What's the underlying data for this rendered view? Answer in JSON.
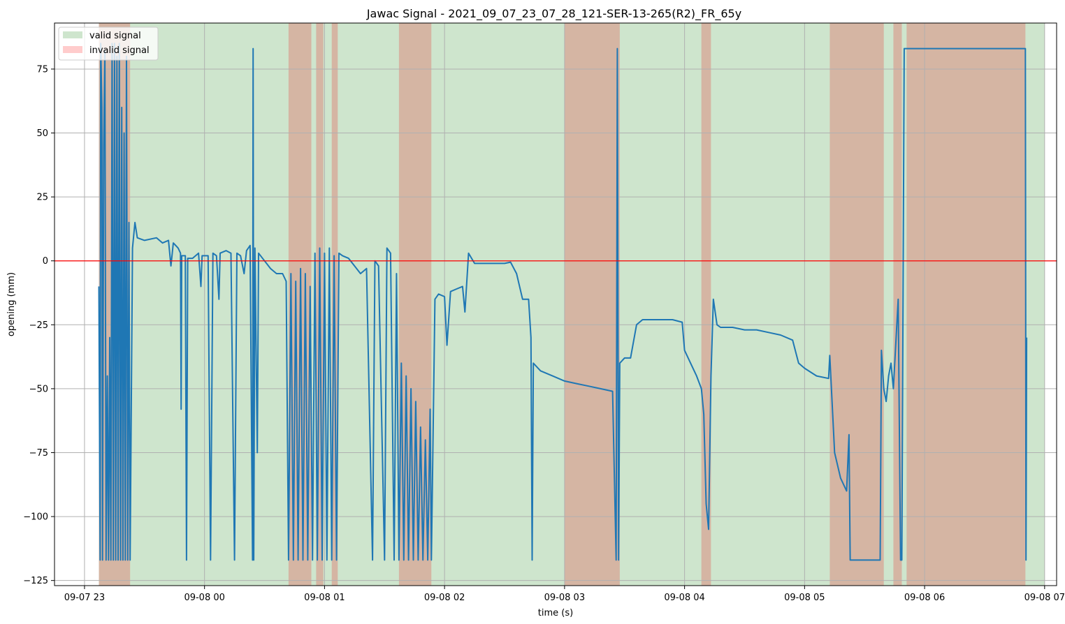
{
  "chart_data": {
    "type": "line",
    "title": "Jawac Signal - 2021_09_07_23_07_28_121-SER-13-265(R2)_FR_65y",
    "xlabel": "time (s)",
    "ylabel": "opening (mm)",
    "x_axis": {
      "unit": "hours since 2021-09-07 23:00",
      "range": [
        -0.25,
        8.1
      ],
      "ticks": [
        {
          "value": 0,
          "label": "09-07 23"
        },
        {
          "value": 1,
          "label": "09-08 00"
        },
        {
          "value": 2,
          "label": "09-08 01"
        },
        {
          "value": 3,
          "label": "09-08 02"
        },
        {
          "value": 4,
          "label": "09-08 03"
        },
        {
          "value": 5,
          "label": "09-08 04"
        },
        {
          "value": 6,
          "label": "09-08 05"
        },
        {
          "value": 7,
          "label": "09-08 06"
        },
        {
          "value": 8,
          "label": "09-08 07"
        }
      ]
    },
    "y_axis": {
      "range": [
        -127,
        93
      ],
      "ticks": [
        {
          "value": 75,
          "label": "75"
        },
        {
          "value": 50,
          "label": "50"
        },
        {
          "value": 25,
          "label": "25"
        },
        {
          "value": 0,
          "label": "0"
        },
        {
          "value": -25,
          "label": "−25"
        },
        {
          "value": -50,
          "label": "−50"
        },
        {
          "value": -75,
          "label": "−75"
        },
        {
          "value": -100,
          "label": "−100"
        },
        {
          "value": -125,
          "label": "−125"
        }
      ]
    },
    "grid": true,
    "legend": {
      "placement": "top-left",
      "entries": [
        {
          "label": "valid signal",
          "color": "#cee5cd"
        },
        {
          "label": "invalid signal",
          "color": "#ffcccc"
        }
      ]
    },
    "reference_line": {
      "y": 0,
      "color": "#ff0000"
    },
    "colors": {
      "signal": "#1f77b4",
      "valid_band": "#cee5cd",
      "invalid_band": "#d5b5a3",
      "grid": "#b0b0b0"
    },
    "valid_range": [
      0.12,
      8.0
    ],
    "invalid_intervals": [
      [
        0.12,
        0.38
      ],
      [
        1.7,
        1.89
      ],
      [
        1.93,
        1.99
      ],
      [
        2.06,
        2.11
      ],
      [
        2.62,
        2.89
      ],
      [
        4.0,
        4.46
      ],
      [
        5.14,
        5.22
      ],
      [
        6.21,
        6.66
      ],
      [
        6.74,
        6.81
      ],
      [
        6.85,
        7.84
      ]
    ],
    "series": [
      {
        "points": [
          [
            0.12,
            -10
          ],
          [
            0.13,
            -117
          ],
          [
            0.135,
            85
          ],
          [
            0.145,
            60
          ],
          [
            0.15,
            -117
          ],
          [
            0.16,
            45
          ],
          [
            0.17,
            82
          ],
          [
            0.18,
            -117
          ],
          [
            0.19,
            -45
          ],
          [
            0.2,
            -117
          ],
          [
            0.21,
            -30
          ],
          [
            0.22,
            -117
          ],
          [
            0.23,
            85
          ],
          [
            0.24,
            -117
          ],
          [
            0.25,
            85
          ],
          [
            0.26,
            -117
          ],
          [
            0.27,
            80
          ],
          [
            0.28,
            -117
          ],
          [
            0.29,
            85
          ],
          [
            0.3,
            -117
          ],
          [
            0.31,
            60
          ],
          [
            0.32,
            -117
          ],
          [
            0.33,
            50
          ],
          [
            0.34,
            -117
          ],
          [
            0.35,
            80
          ],
          [
            0.36,
            -117
          ],
          [
            0.37,
            15
          ],
          [
            0.38,
            -117
          ],
          [
            0.4,
            5
          ],
          [
            0.42,
            15
          ],
          [
            0.44,
            9
          ],
          [
            0.5,
            8
          ],
          [
            0.6,
            9
          ],
          [
            0.65,
            7
          ],
          [
            0.7,
            8
          ],
          [
            0.72,
            -2
          ],
          [
            0.74,
            7
          ],
          [
            0.78,
            5
          ],
          [
            0.8,
            3
          ],
          [
            0.805,
            -58
          ],
          [
            0.81,
            2
          ],
          [
            0.84,
            2
          ],
          [
            0.85,
            -117
          ],
          [
            0.86,
            1
          ],
          [
            0.9,
            1
          ],
          [
            0.95,
            3
          ],
          [
            0.97,
            -10
          ],
          [
            0.98,
            2
          ],
          [
            1.0,
            2
          ],
          [
            1.03,
            2
          ],
          [
            1.05,
            -117
          ],
          [
            1.07,
            3
          ],
          [
            1.1,
            2
          ],
          [
            1.12,
            -15
          ],
          [
            1.13,
            3
          ],
          [
            1.18,
            4
          ],
          [
            1.22,
            3
          ],
          [
            1.25,
            -117
          ],
          [
            1.27,
            3
          ],
          [
            1.3,
            2
          ],
          [
            1.33,
            -5
          ],
          [
            1.35,
            4
          ],
          [
            1.38,
            6
          ],
          [
            1.4,
            -117
          ],
          [
            1.405,
            83
          ],
          [
            1.41,
            -117
          ],
          [
            1.42,
            5
          ],
          [
            1.44,
            -75
          ],
          [
            1.45,
            3
          ],
          [
            1.5,
            0
          ],
          [
            1.55,
            -3
          ],
          [
            1.6,
            -5
          ],
          [
            1.65,
            -5
          ],
          [
            1.68,
            -8
          ],
          [
            1.7,
            -117
          ],
          [
            1.72,
            -5
          ],
          [
            1.74,
            -117
          ],
          [
            1.76,
            -8
          ],
          [
            1.78,
            -117
          ],
          [
            1.8,
            -3
          ],
          [
            1.82,
            -117
          ],
          [
            1.84,
            -5
          ],
          [
            1.86,
            -117
          ],
          [
            1.88,
            -10
          ],
          [
            1.9,
            -117
          ],
          [
            1.92,
            3
          ],
          [
            1.94,
            -117
          ],
          [
            1.96,
            5
          ],
          [
            1.98,
            -117
          ],
          [
            2.0,
            3
          ],
          [
            2.02,
            -117
          ],
          [
            2.04,
            5
          ],
          [
            2.06,
            -117
          ],
          [
            2.08,
            2
          ],
          [
            2.1,
            -117
          ],
          [
            2.12,
            3
          ],
          [
            2.15,
            2
          ],
          [
            2.2,
            1
          ],
          [
            2.3,
            -5
          ],
          [
            2.35,
            -3
          ],
          [
            2.4,
            -117
          ],
          [
            2.42,
            0
          ],
          [
            2.45,
            -2
          ],
          [
            2.5,
            -117
          ],
          [
            2.52,
            5
          ],
          [
            2.55,
            3
          ],
          [
            2.58,
            -117
          ],
          [
            2.6,
            -5
          ],
          [
            2.62,
            -117
          ],
          [
            2.64,
            -40
          ],
          [
            2.66,
            -117
          ],
          [
            2.68,
            -45
          ],
          [
            2.7,
            -117
          ],
          [
            2.72,
            -50
          ],
          [
            2.74,
            -117
          ],
          [
            2.76,
            -55
          ],
          [
            2.78,
            -117
          ],
          [
            2.8,
            -65
          ],
          [
            2.82,
            -117
          ],
          [
            2.84,
            -70
          ],
          [
            2.86,
            -117
          ],
          [
            2.88,
            -58
          ],
          [
            2.89,
            -117
          ],
          [
            2.92,
            -15
          ],
          [
            2.95,
            -13
          ],
          [
            3.0,
            -14
          ],
          [
            3.02,
            -33
          ],
          [
            3.05,
            -12
          ],
          [
            3.1,
            -11
          ],
          [
            3.15,
            -10
          ],
          [
            3.17,
            -20
          ],
          [
            3.2,
            3
          ],
          [
            3.25,
            -1
          ],
          [
            3.3,
            -1
          ],
          [
            3.4,
            -1
          ],
          [
            3.5,
            -1
          ],
          [
            3.55,
            -0.5
          ],
          [
            3.6,
            -5
          ],
          [
            3.65,
            -15
          ],
          [
            3.7,
            -15
          ],
          [
            3.72,
            -30
          ],
          [
            3.73,
            -117
          ],
          [
            3.74,
            -40
          ],
          [
            3.8,
            -43
          ],
          [
            3.9,
            -45
          ],
          [
            4.0,
            -47
          ],
          [
            4.1,
            -48
          ],
          [
            4.2,
            -49
          ],
          [
            4.3,
            -50
          ],
          [
            4.4,
            -51
          ],
          [
            4.43,
            -117
          ],
          [
            4.44,
            83
          ],
          [
            4.45,
            -117
          ],
          [
            4.46,
            -40
          ],
          [
            4.5,
            -38
          ],
          [
            4.55,
            -38
          ],
          [
            4.6,
            -25
          ],
          [
            4.65,
            -23
          ],
          [
            4.7,
            -23
          ],
          [
            4.8,
            -23
          ],
          [
            4.9,
            -23
          ],
          [
            4.98,
            -24
          ],
          [
            5.0,
            -35
          ],
          [
            5.05,
            -40
          ],
          [
            5.1,
            -45
          ],
          [
            5.14,
            -50
          ],
          [
            5.16,
            -60
          ],
          [
            5.18,
            -95
          ],
          [
            5.2,
            -105
          ],
          [
            5.22,
            -45
          ],
          [
            5.24,
            -15
          ],
          [
            5.27,
            -25
          ],
          [
            5.3,
            -26
          ],
          [
            5.4,
            -26
          ],
          [
            5.5,
            -27
          ],
          [
            5.6,
            -27
          ],
          [
            5.7,
            -28
          ],
          [
            5.8,
            -29
          ],
          [
            5.9,
            -31
          ],
          [
            5.95,
            -40
          ],
          [
            6.0,
            -42
          ],
          [
            6.1,
            -45
          ],
          [
            6.2,
            -46
          ],
          [
            6.21,
            -37
          ],
          [
            6.25,
            -75
          ],
          [
            6.3,
            -85
          ],
          [
            6.35,
            -90
          ],
          [
            6.37,
            -68
          ],
          [
            6.38,
            -117
          ],
          [
            6.5,
            -117
          ],
          [
            6.6,
            -117
          ],
          [
            6.63,
            -117
          ],
          [
            6.64,
            -35
          ],
          [
            6.66,
            -50
          ],
          [
            6.68,
            -55
          ],
          [
            6.7,
            -45
          ],
          [
            6.72,
            -40
          ],
          [
            6.74,
            -50
          ],
          [
            6.78,
            -15
          ],
          [
            6.8,
            -117
          ],
          [
            6.81,
            -117
          ],
          [
            6.83,
            83
          ],
          [
            7.0,
            83
          ],
          [
            7.2,
            83
          ],
          [
            7.4,
            83
          ],
          [
            7.6,
            83
          ],
          [
            7.8,
            83
          ],
          [
            7.84,
            83
          ],
          [
            7.845,
            -117
          ],
          [
            7.85,
            -30
          ]
        ]
      }
    ]
  }
}
